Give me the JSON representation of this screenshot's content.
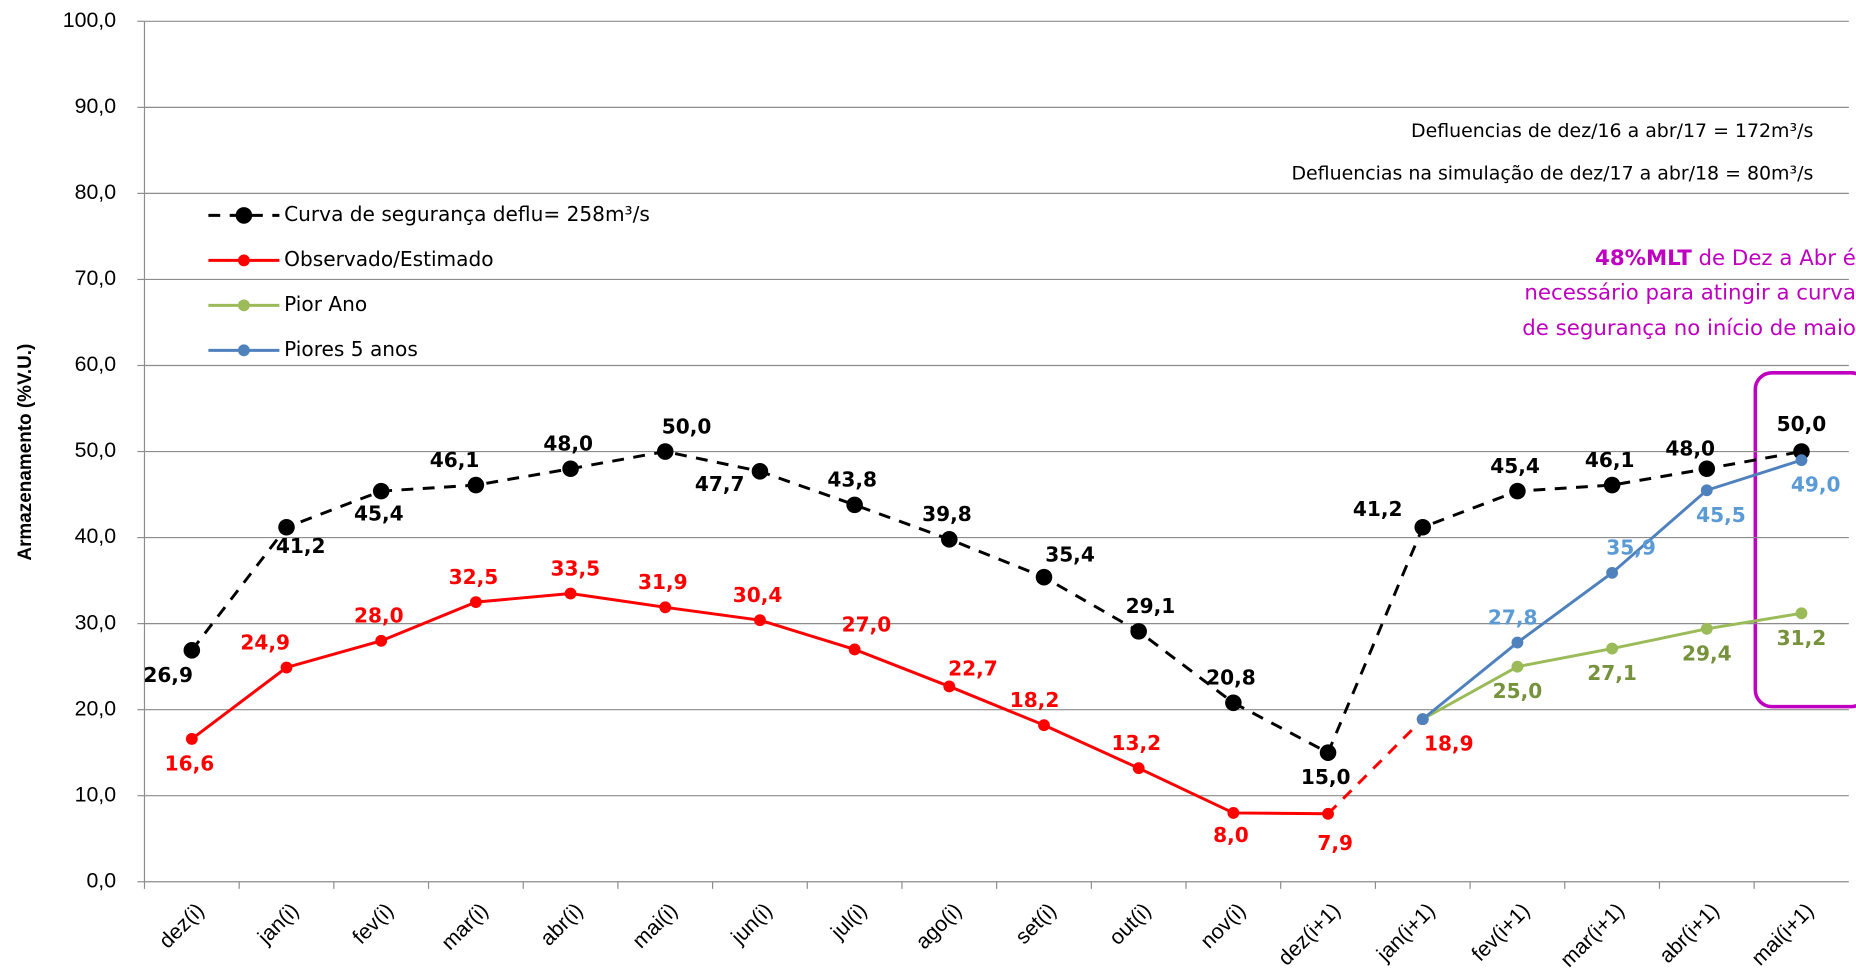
{
  "chart_data": {
    "type": "line",
    "y_label": "Armazenamento (%V.U.)",
    "categories": [
      "dez(i)",
      "jan(i)",
      "fev(i)",
      "mar(i)",
      "abr(i)",
      "mai(i)",
      "jun(i)",
      "jul(i)",
      "ago(i)",
      "set(i)",
      "out(i)",
      "nov(i)",
      "dez(i+1)",
      "jan(i+1)",
      "fev(i+1)",
      "mar(i+1)",
      "abr(i+1)",
      "mai(i+1)"
    ],
    "ylim": [
      0,
      100
    ],
    "yticks": [
      {
        "value": 0,
        "label": "0,0"
      },
      {
        "value": 10,
        "label": "10,0"
      },
      {
        "value": 20,
        "label": "20,0"
      },
      {
        "value": 30,
        "label": "30,0"
      },
      {
        "value": 40,
        "label": "40,0"
      },
      {
        "value": 50,
        "label": "50,0"
      },
      {
        "value": 60,
        "label": "60,0"
      },
      {
        "value": 70,
        "label": "70,0"
      },
      {
        "value": 80,
        "label": "80,0"
      },
      {
        "value": 90,
        "label": "90,0"
      },
      {
        "value": 100,
        "label": "100,0"
      }
    ],
    "grid": true,
    "series": [
      {
        "name": "Curva de segurança deflu= 258m³/s",
        "color": "#000000",
        "label_color": "#000000",
        "dashed": true,
        "values": [
          26.9,
          41.2,
          45.4,
          46.1,
          48.0,
          50.0,
          47.7,
          43.8,
          39.8,
          35.4,
          29.1,
          20.8,
          15.0,
          41.2,
          45.4,
          46.1,
          48.0,
          50.0
        ],
        "value_labels": [
          "26,9",
          "41,2",
          "45,4",
          "46,1",
          "48,0",
          "50,0",
          "47,7",
          "43,8",
          "39,8",
          "35,4",
          "29,1",
          "20,8",
          "15,0",
          "41,2",
          "45,4",
          "46,1",
          "48,0",
          "50,0"
        ]
      },
      {
        "name": "Observado/Estimado",
        "color": "#ff0000",
        "label_color": "#ff0000",
        "dashed": false,
        "dashed_after_index": 12,
        "values": [
          16.6,
          24.9,
          28.0,
          32.5,
          33.5,
          31.9,
          30.4,
          27.0,
          22.7,
          18.2,
          13.2,
          8.0,
          7.9,
          18.9,
          null,
          null,
          null,
          null
        ],
        "value_labels": [
          "16,6",
          "24,9",
          "28,0",
          "32,5",
          "33,5",
          "31,9",
          "30,4",
          "27,0",
          "22,7",
          "18,2",
          "13,2",
          "8,0",
          "7,9",
          "18,9",
          null,
          null,
          null,
          null
        ]
      },
      {
        "name": "Pior Ano",
        "color": "#9bbb59",
        "label_color": "#76923c",
        "dashed": false,
        "values": [
          null,
          null,
          null,
          null,
          null,
          null,
          null,
          null,
          null,
          null,
          null,
          null,
          null,
          18.9,
          25.0,
          27.1,
          29.4,
          31.2
        ],
        "value_labels": [
          null,
          null,
          null,
          null,
          null,
          null,
          null,
          null,
          null,
          null,
          null,
          null,
          null,
          null,
          "25,0",
          "27,1",
          "29,4",
          "31,2"
        ]
      },
      {
        "name": "Piores 5 anos",
        "color": "#4f81bd",
        "label_color": "#5b9bd5",
        "dashed": false,
        "values": [
          null,
          null,
          null,
          null,
          null,
          null,
          null,
          null,
          null,
          null,
          null,
          null,
          null,
          18.9,
          27.8,
          35.9,
          45.5,
          49.0
        ],
        "value_labels": [
          null,
          null,
          null,
          null,
          null,
          null,
          null,
          null,
          null,
          null,
          null,
          null,
          null,
          null,
          "27,8",
          "35,9",
          "45,5",
          "49,0"
        ]
      }
    ],
    "annotations": [
      "Defluencias de dez/16 a abr/17 = 172m³/s",
      "Defluencias na simulação de dez/17 a abr/18 = 80m³/s"
    ],
    "highlight": {
      "bold": "48%MLT",
      "lines": [
        " de Dez a Abr é",
        "necessário para atingir a curva",
        "de segurança no início de maio"
      ],
      "color": "#c000c0"
    }
  }
}
